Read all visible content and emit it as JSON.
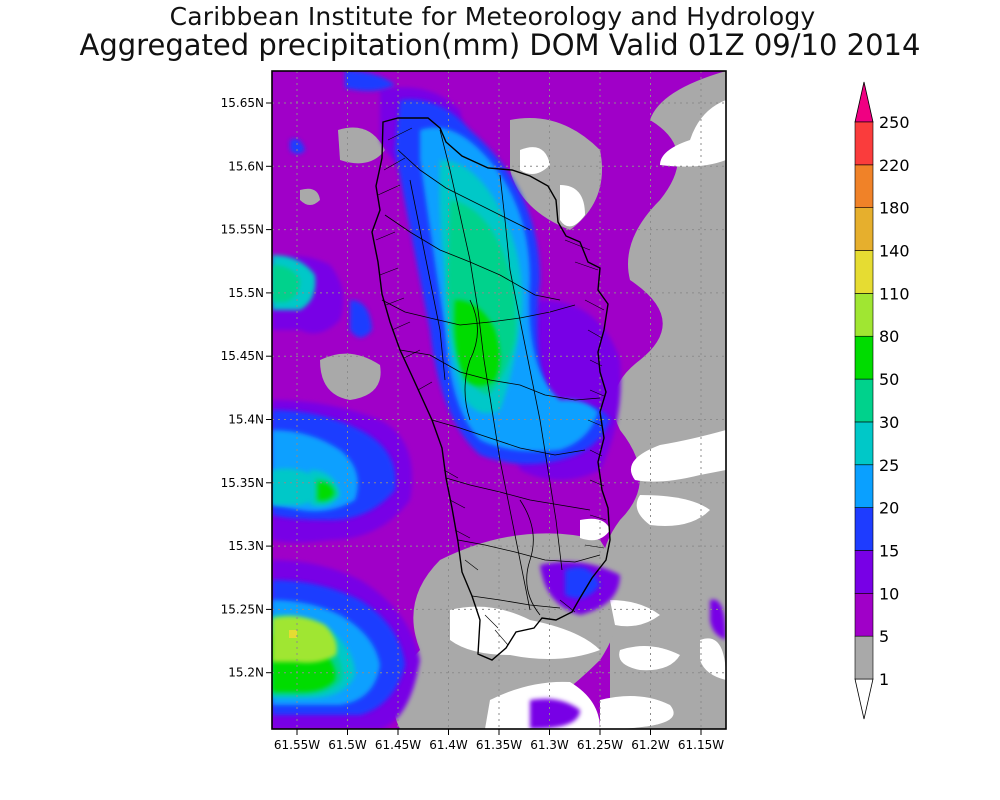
{
  "title": {
    "line1": "Caribbean Institute for Meteorology and Hydrology",
    "line2": "Aggregated precipitation(mm) DOM Valid 01Z 09/10 2014"
  },
  "map": {
    "lon_range": [
      -61.58,
      -61.13
    ],
    "lat_range": [
      15.155,
      15.68
    ],
    "x_ticks": [
      "61.55W",
      "61.5W",
      "61.45W",
      "61.4W",
      "61.35W",
      "61.3W",
      "61.25W",
      "61.2W",
      "61.15W"
    ],
    "y_ticks": [
      "15.65N",
      "15.6N",
      "15.55N",
      "15.5N",
      "15.45N",
      "15.4N",
      "15.35N",
      "15.3N",
      "15.25N",
      "15.2N"
    ],
    "grid": true
  },
  "colorbar": {
    "labels": [
      "1",
      "5",
      "10",
      "15",
      "20",
      "25",
      "30",
      "50",
      "80",
      "110",
      "140",
      "180",
      "220",
      "250"
    ],
    "colors": [
      "#a9a9a9",
      "#a000c8",
      "#7800e6",
      "#1e3cff",
      "#0aa0ff",
      "#00c8c8",
      "#00d28c",
      "#00dc00",
      "#a0e632",
      "#e6dc32",
      "#e6af2d",
      "#f08228",
      "#fa3c3c",
      "#f00082"
    ],
    "low_color": "#ffffff",
    "high_color": "#f00082"
  }
}
